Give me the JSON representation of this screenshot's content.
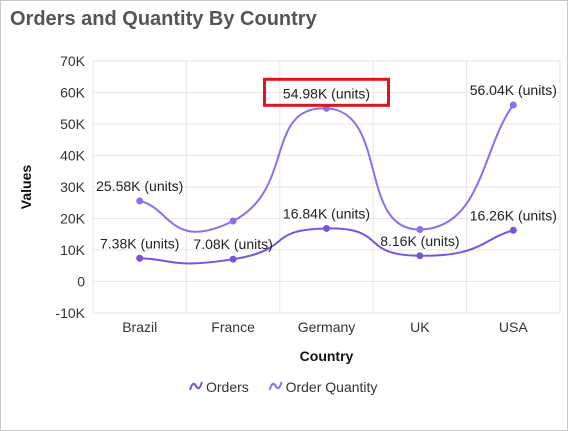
{
  "chart_data": {
    "type": "line",
    "title": "Orders and Quantity By Country",
    "xlabel": "Country",
    "ylabel": "Values",
    "categories": [
      "Brazil",
      "France",
      "Germany",
      "UK",
      "USA"
    ],
    "ylim": [
      -10000,
      70000
    ],
    "yticks": [
      {
        "value": 70000,
        "label": "70K"
      },
      {
        "value": 60000,
        "label": "60K"
      },
      {
        "value": 50000,
        "label": "50K"
      },
      {
        "value": 40000,
        "label": "40K"
      },
      {
        "value": 30000,
        "label": "30K"
      },
      {
        "value": 20000,
        "label": "20K"
      },
      {
        "value": 10000,
        "label": "10K"
      },
      {
        "value": 0,
        "label": "0"
      },
      {
        "value": -10000,
        "label": "-10K"
      }
    ],
    "series": [
      {
        "name": "Orders",
        "color": "#7b52e0",
        "values": [
          7380,
          7080,
          16840,
          8160,
          16260
        ],
        "labels": [
          "7.38K (units)",
          "7.08K (units)",
          "16.84K (units)",
          "8.16K (units)",
          "16.26K (units)"
        ]
      },
      {
        "name": "Order Quantity",
        "color": "#8f6df0",
        "values": [
          25580,
          19200,
          54980,
          16500,
          56040
        ],
        "labels": [
          "25.58K (units)",
          "",
          "54.98K (units)",
          "",
          "56.04K (units)"
        ]
      }
    ],
    "highlight_label": "54.98K (units)",
    "highlight_color": "#e0141e",
    "grid": true,
    "legend_position": "bottom",
    "smooth": true
  }
}
